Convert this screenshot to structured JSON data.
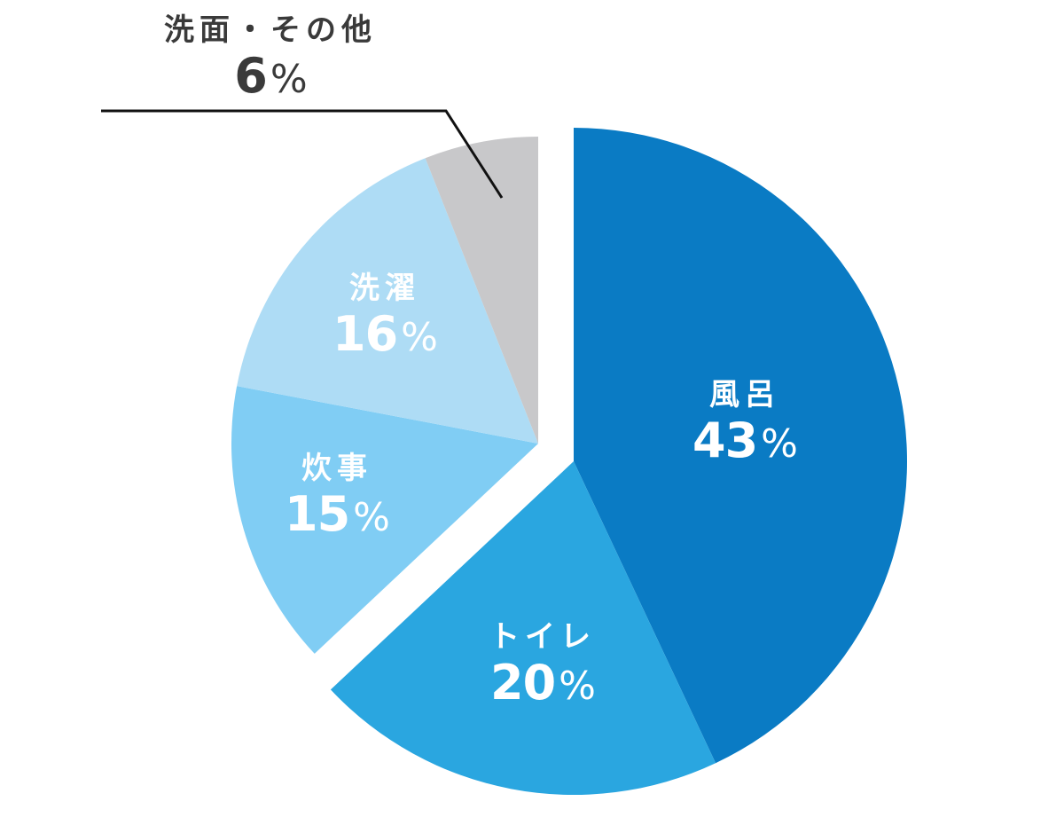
{
  "chart_data": {
    "type": "pie",
    "title": "",
    "start_angle_deg": 0,
    "direction": "clockwise",
    "exploded_groups": true,
    "slices": [
      {
        "label": "風呂",
        "value": 43,
        "display": "43",
        "unit": "%",
        "color": "#0a7bc4"
      },
      {
        "label": "トイレ",
        "value": 20,
        "display": "20",
        "unit": "%",
        "color": "#2aa6e0"
      },
      {
        "label": "炊事",
        "value": 15,
        "display": "15",
        "unit": "%",
        "color": "#80cdf4"
      },
      {
        "label": "洗濯",
        "value": 16,
        "display": "16",
        "unit": "%",
        "color": "#aedcf5"
      },
      {
        "label": "洗面・その他",
        "value": 6,
        "display": "6",
        "unit": "%",
        "color": "#c8c8ca"
      }
    ],
    "legend": "none",
    "label_color": "#ffffff",
    "callout_color": "#3a3a3a"
  }
}
